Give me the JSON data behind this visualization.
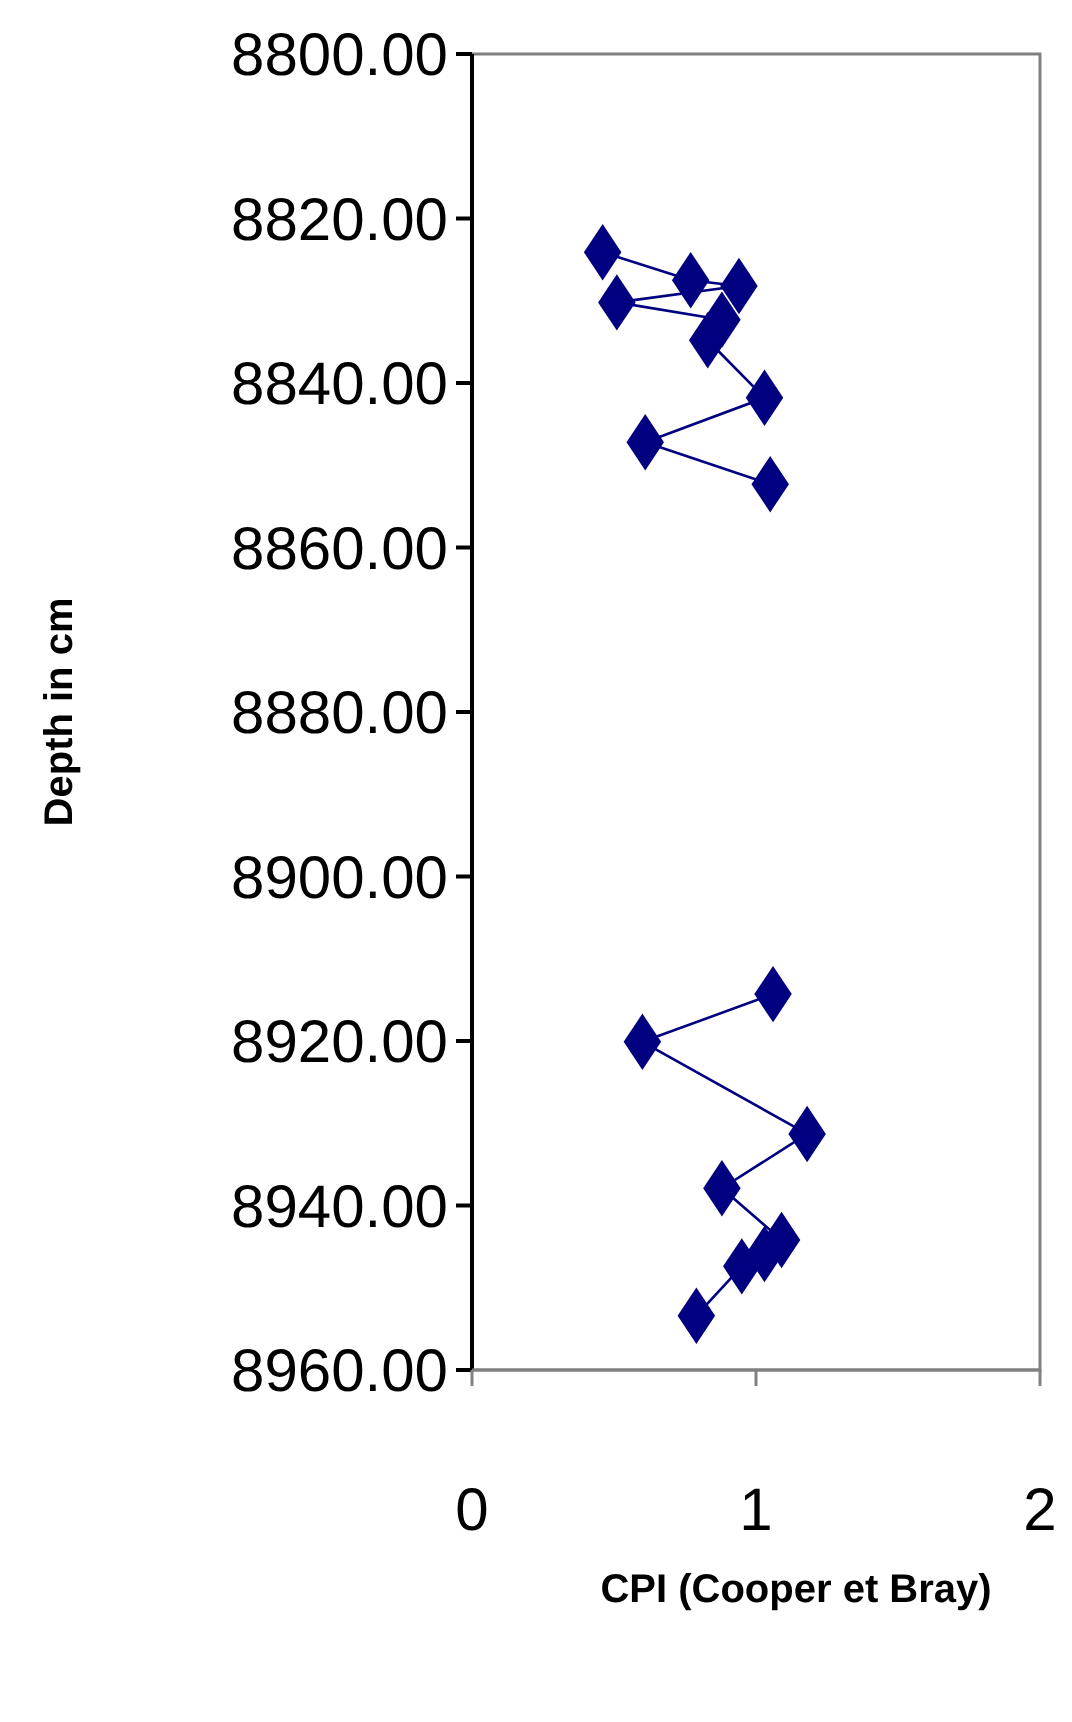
{
  "chart_data": {
    "type": "line",
    "xlabel": "CPI (Cooper et Bray)",
    "ylabel": "Depth in cm",
    "x": [
      0.46,
      0.77,
      0.94,
      0.51,
      0.88,
      0.83,
      1.03,
      0.61,
      1.05,
      null,
      1.06,
      0.6,
      1.18,
      0.88,
      1.09,
      1.03,
      0.95,
      0.79
    ],
    "series": [
      {
        "color": "#000080",
        "values": [
          8824.1,
          8827.5,
          8828.2,
          8830.2,
          8832.3,
          8834.8,
          8841.8,
          8847.2,
          8852.3,
          null,
          8914.3,
          8920.1,
          8931.3,
          8937.9,
          8944.2,
          8945.9,
          8947.4,
          8953.4
        ]
      }
    ],
    "xlim": [
      0,
      2
    ],
    "xticks": [
      0,
      1,
      2
    ],
    "ylim": [
      8960,
      8800
    ],
    "yticks": [
      {
        "value": 8800,
        "label": "8800.00"
      },
      {
        "value": 8820,
        "label": "8820.00"
      },
      {
        "value": 8840,
        "label": "8840.00"
      },
      {
        "value": 8860,
        "label": "8860.00"
      },
      {
        "value": 8880,
        "label": "8880.00"
      },
      {
        "value": 8900,
        "label": "8900.00"
      },
      {
        "value": 8920,
        "label": "8920.00"
      },
      {
        "value": 8940,
        "label": "8940.00"
      },
      {
        "value": 8960,
        "label": "8960.00"
      }
    ],
    "marker": "diamond",
    "grid": false
  }
}
